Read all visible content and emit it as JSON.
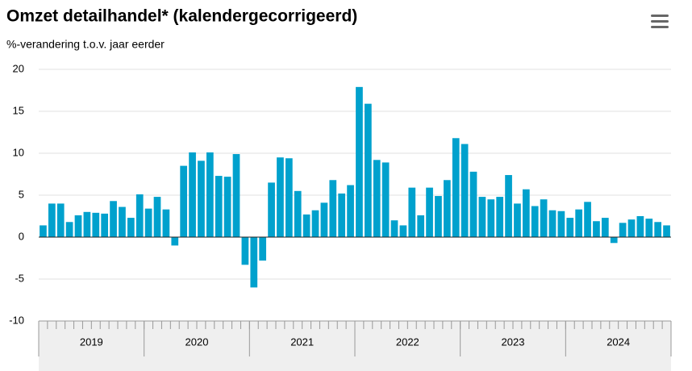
{
  "chart_data": {
    "type": "bar",
    "title": "Omzet detailhandel* (kalendergecorrigeerd)",
    "subtitle": "%-verandering t.o.v. jaar eerder",
    "categories": [
      null,
      null,
      null,
      null,
      null,
      null,
      null,
      null,
      null,
      null,
      null,
      null,
      null,
      null,
      null,
      null,
      null,
      null,
      null,
      null,
      null,
      null,
      null,
      null,
      null,
      null,
      null,
      null,
      null,
      null,
      null,
      null,
      null,
      null,
      null,
      null,
      null,
      null,
      null,
      null,
      null,
      null,
      null,
      null,
      null,
      null,
      null,
      null,
      null,
      null,
      null,
      null,
      null,
      null,
      null,
      null,
      null,
      null,
      null,
      null,
      null,
      null,
      null,
      null,
      null,
      null,
      null,
      null,
      null,
      null,
      null,
      null
    ],
    "year_groups": [
      "2019",
      "2020",
      "2021",
      "2022",
      "2023",
      "2024"
    ],
    "values": [
      1.4,
      4.0,
      4.0,
      1.8,
      2.6,
      3.0,
      2.9,
      2.8,
      4.3,
      3.6,
      2.3,
      5.1,
      3.4,
      4.8,
      3.3,
      -1.0,
      8.5,
      10.1,
      9.1,
      10.1,
      7.3,
      7.2,
      9.9,
      -3.3,
      -6.0,
      -2.8,
      6.5,
      9.5,
      9.4,
      5.5,
      2.7,
      3.2,
      4.1,
      6.8,
      5.2,
      6.2,
      17.9,
      15.9,
      9.2,
      8.9,
      2.0,
      1.4,
      5.9,
      2.6,
      5.9,
      4.9,
      6.8,
      11.8,
      11.1,
      7.8,
      4.8,
      4.5,
      4.8,
      7.4,
      4.0,
      5.7,
      3.7,
      4.5,
      3.2,
      3.1,
      2.3,
      3.3,
      4.2,
      1.9,
      2.3,
      -0.7,
      1.7,
      2.1,
      2.5,
      2.2,
      1.8,
      1.4
    ],
    "color": "#00a1cd",
    "ylim": [
      -10,
      20
    ],
    "yticks": [
      -10,
      -5,
      0,
      5,
      10,
      15,
      20
    ],
    "grid": true
  }
}
